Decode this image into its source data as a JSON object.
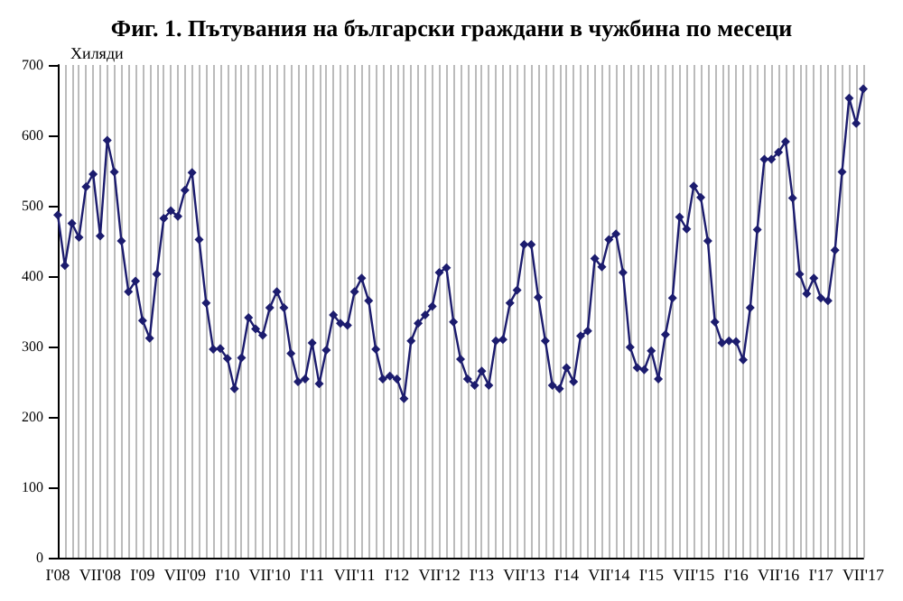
{
  "chart_data": {
    "type": "line",
    "title": "Фиг. 1. Пътувания на български граждани в чужбина по месеци",
    "ylabel": "Хиляди",
    "categories": [
      "I'08",
      null,
      null,
      null,
      null,
      null,
      "VII'08",
      null,
      null,
      null,
      null,
      null,
      "I'09",
      null,
      null,
      null,
      null,
      null,
      "VII'09",
      null,
      null,
      null,
      null,
      null,
      "I'10",
      null,
      null,
      null,
      null,
      null,
      "VII'10",
      null,
      null,
      null,
      null,
      null,
      "I'11",
      null,
      null,
      null,
      null,
      null,
      "VII'11",
      null,
      null,
      null,
      null,
      null,
      "I'12",
      null,
      null,
      null,
      null,
      null,
      "VII'12",
      null,
      null,
      null,
      null,
      null,
      "I'13",
      null,
      null,
      null,
      null,
      null,
      "VII'13",
      null,
      null,
      null,
      null,
      null,
      "I'14",
      null,
      null,
      null,
      null,
      null,
      "VII'14",
      null,
      null,
      null,
      null,
      null,
      "I'15",
      null,
      null,
      null,
      null,
      null,
      "VII'15",
      null,
      null,
      null,
      null,
      null,
      "I'16",
      null,
      null,
      null,
      null,
      null,
      "VII'16",
      null,
      null,
      null,
      null,
      null,
      "I'17",
      null,
      null,
      null,
      null,
      null,
      "VII'17"
    ],
    "series": [
      {
        "color": "#1c1c6e",
        "values": [
          487,
          415,
          475,
          455,
          527,
          545,
          457,
          593,
          548,
          450,
          378,
          393,
          337,
          312,
          403,
          482,
          493,
          485,
          522,
          547,
          452,
          362,
          296,
          297,
          283,
          240,
          284,
          341,
          325,
          316,
          355,
          378,
          355,
          290,
          250,
          254,
          305,
          247,
          295,
          345,
          333,
          330,
          378,
          397,
          365,
          296,
          254,
          258,
          254,
          226,
          308,
          333,
          345,
          357,
          405,
          412,
          335,
          282,
          254,
          245,
          265,
          245,
          308,
          310,
          362,
          380,
          445,
          445,
          370,
          308,
          245,
          240,
          270,
          250,
          315,
          322,
          425,
          413,
          452,
          460,
          405,
          299,
          270,
          267,
          294,
          254,
          317,
          369,
          484,
          467,
          528,
          512,
          450,
          335,
          305,
          308,
          307,
          281,
          355,
          466,
          566,
          566,
          576,
          591,
          511,
          403,
          375,
          397,
          369,
          365,
          437,
          548,
          653,
          617,
          666
        ]
      }
    ],
    "ylim": [
      0,
      700
    ],
    "yticks": [
      0,
      100,
      200,
      300,
      400,
      500,
      600,
      700
    ],
    "grid": "x",
    "marker": "diamond",
    "line_style": "solid"
  }
}
